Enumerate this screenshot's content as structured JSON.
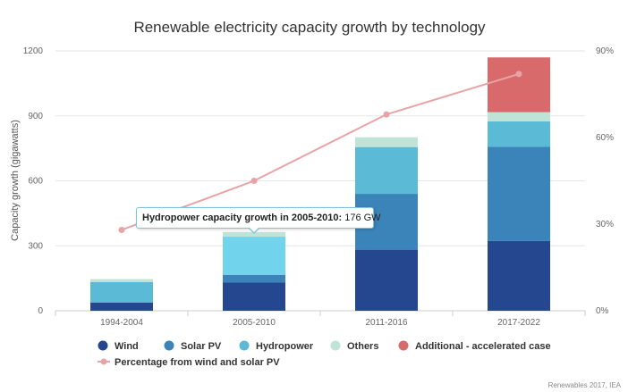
{
  "chart_data": {
    "type": "bar",
    "stacked": true,
    "title": "Renewable electricity capacity growth by technology",
    "ylabel": "Capacity growth (gigawatts)",
    "xlabel": "",
    "categories": [
      "1994-2004",
      "2005-2010",
      "2011-2016",
      "2017-2022"
    ],
    "ylim": [
      0,
      1200
    ],
    "yticks": [
      0,
      300,
      600,
      900,
      1200
    ],
    "y2lim": [
      0,
      90
    ],
    "y2ticks": [
      "0%",
      "30%",
      "60%",
      "90%"
    ],
    "series": [
      {
        "name": "Wind",
        "color": "#25478f",
        "values": [
          38,
          130,
          282,
          322
        ]
      },
      {
        "name": "Solar PV",
        "color": "#3b84b9",
        "values": [
          2,
          36,
          258,
          435
        ]
      },
      {
        "name": "Hydropower",
        "color": "#5bbad5",
        "values": [
          92,
          176,
          216,
          118
        ]
      },
      {
        "name": "Others",
        "color": "#bfe3d6",
        "values": [
          14,
          22,
          45,
          42
        ]
      },
      {
        "name": "Additional - accelerated case",
        "color": "#d86a6b",
        "values": [
          0,
          0,
          0,
          253
        ]
      }
    ],
    "line_series": {
      "name": "Percentage from wind and solar PV",
      "color": "#e8a3a5",
      "axis": "right",
      "values": [
        28,
        45,
        68,
        82
      ]
    },
    "legend_position": "bottom",
    "grid": true,
    "highlighted": {
      "category": "2005-2010",
      "series": "Hydropower",
      "color": "#72d3ec"
    },
    "tooltip": {
      "label": "Hydropower capacity growth in 2005-2010:",
      "value": "176 GW"
    },
    "source": "Renewables 2017, IEA"
  }
}
